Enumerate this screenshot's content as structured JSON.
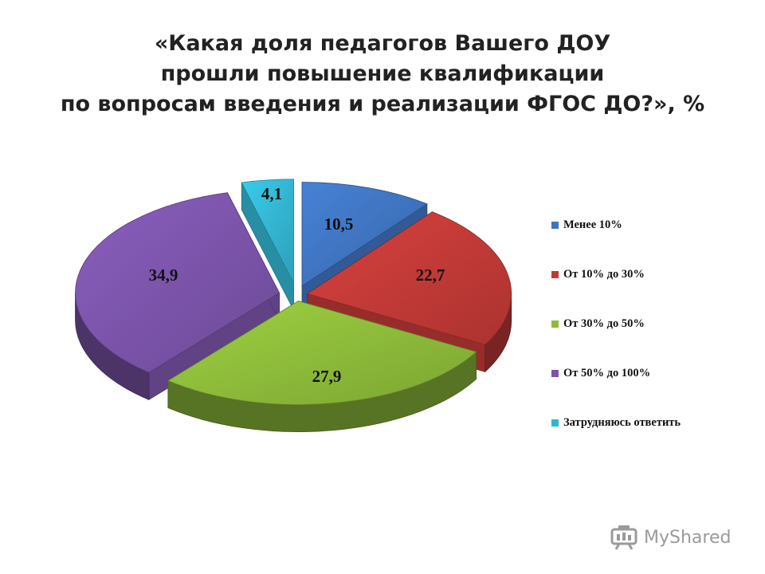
{
  "chart_data": {
    "type": "pie",
    "title": [
      "«Какая доля педагогов Вашего ДОУ",
      "прошли повышение квалификации",
      "по вопросам введения и реализации ФГОС ДО?», %"
    ],
    "categories": [
      "Менее 10%",
      "От 10% до 30%",
      "От 30% до 50%",
      "От 50% до 100%",
      "Затрудняюсь ответить"
    ],
    "values": [
      10.5,
      22.7,
      27.9,
      34.9,
      4.1
    ],
    "value_labels": [
      "10,5",
      "22,7",
      "27,9",
      "34,9",
      "4,1"
    ],
    "colors": [
      "#3f74c0",
      "#c23a37",
      "#8dbb3a",
      "#7b54aa",
      "#33b6d2"
    ],
    "style": "3d-exploded",
    "legend_position": "right"
  },
  "watermark": {
    "text": "MyShared",
    "icon": "presentation-board-icon"
  }
}
